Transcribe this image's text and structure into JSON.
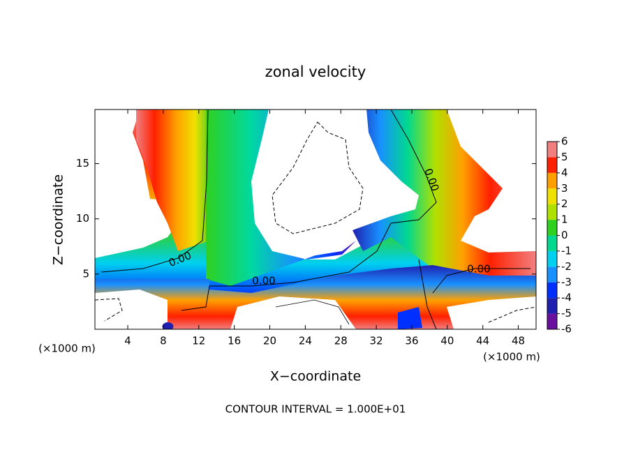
{
  "chart_data": {
    "type": "contour",
    "title": "zonal velocity",
    "x_label": "X−coordinate",
    "y_label": "Z−coordinate",
    "x_unit_labels": [
      "(×1000 m)",
      "(×1000 m)"
    ],
    "footnote": "CONTOUR INTERVAL = 1.000E+01",
    "contour_labels": [
      "0.00",
      "0.00",
      "0.00",
      "0.00"
    ],
    "xlim": [
      0.3,
      50
    ],
    "xticks": [
      4,
      8,
      12,
      16,
      20,
      24,
      28,
      32,
      36,
      40,
      44,
      48
    ],
    "ylim": [
      0,
      19.9
    ],
    "yticks": [
      5,
      10,
      15
    ],
    "colorbar": {
      "levels": [
        -6,
        -5,
        -4,
        -3,
        -2,
        -1,
        0,
        1,
        2,
        3,
        4,
        5,
        6
      ],
      "colors": [
        "#6a10a0",
        "#2020b0",
        "#0030ff",
        "#1890ff",
        "#00d0f0",
        "#00d890",
        "#30d020",
        "#b0e000",
        "#f0e000",
        "#ffa000",
        "#ff2000",
        "#f08080"
      ]
    }
  }
}
